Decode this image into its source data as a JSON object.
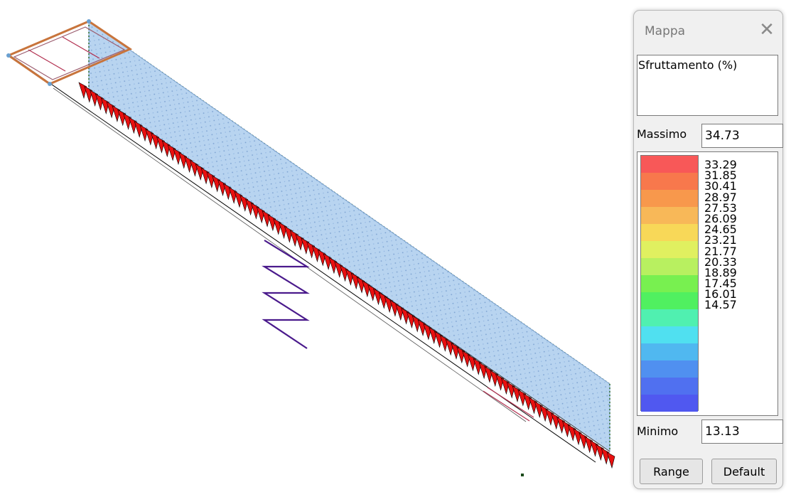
{
  "panel": {
    "title": "Mappa",
    "close_glyph": "✕",
    "result_type": "Sfruttamento (%)",
    "max_label": "Massimo",
    "max_value": "34.73",
    "min_label": "Minimo",
    "min_value": "13.13",
    "legend_values": [
      "33.29",
      "31.85",
      "30.41",
      "28.97",
      "27.53",
      "26.09",
      "24.65",
      "23.21",
      "21.77",
      "20.33",
      "18.89",
      "17.45",
      "16.01",
      "14.57"
    ],
    "legend_colors": [
      "#f85858",
      "#f8784c",
      "#f8984c",
      "#f8b858",
      "#f8d858",
      "#e0f060",
      "#b8f060",
      "#78f050",
      "#50f060",
      "#50f0b0",
      "#50e0f0",
      "#50b8f0",
      "#5090f0",
      "#5070f0",
      "#5058f0"
    ],
    "range_button": "Range",
    "default_button": "Default"
  }
}
